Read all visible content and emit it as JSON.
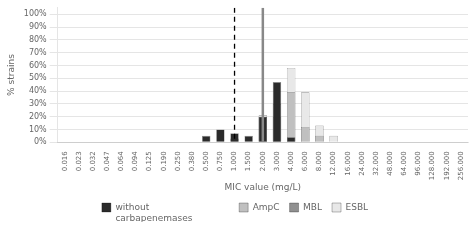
{
  "chart_data": {
    "type": "bar",
    "categories": [
      "0.016",
      "0.023",
      "0.032",
      "0.047",
      "0.064",
      "0.094",
      "0.125",
      "0.190",
      "0.250",
      "0.380",
      "0.500",
      "0.750",
      "1.000",
      "1.500",
      "2.000",
      "3.000",
      "4.000",
      "6.000",
      "8.000",
      "12.000",
      "16.000",
      "24.000",
      "32.000",
      "48.000",
      "64.000",
      "96.000",
      "128.000",
      "192.000",
      "256.000"
    ],
    "series": [
      {
        "name": "without\ncarbapenemases",
        "color": "#2b2b2b",
        "values": [
          0,
          0,
          0,
          0,
          0,
          0,
          0,
          0,
          0,
          0,
          5,
          10,
          7,
          5,
          20,
          47,
          4,
          0,
          0,
          0,
          0,
          0,
          0,
          0,
          0,
          0,
          0,
          0,
          0
        ]
      },
      {
        "name": "AmpC",
        "color": "#c0c0c0",
        "values": [
          0,
          0,
          0,
          0,
          0,
          0,
          0,
          0,
          0,
          0,
          0,
          0,
          3,
          0,
          20,
          20,
          39,
          12,
          5,
          0,
          0,
          0,
          0,
          0,
          0,
          0,
          0,
          0,
          0
        ]
      },
      {
        "name": "MBL",
        "color": "#909090",
        "values": [
          0,
          0,
          0,
          0,
          0,
          0,
          0,
          0,
          0,
          0,
          0,
          0,
          0,
          0,
          0,
          0,
          0,
          0,
          0,
          0,
          0,
          0,
          0,
          0,
          0,
          0,
          0,
          0,
          0
        ]
      },
      {
        "name": "ESBL",
        "color": "#e8e8e8",
        "values": [
          0,
          0,
          0,
          0,
          0,
          0,
          0,
          0,
          0,
          0,
          0,
          0,
          0,
          0,
          21,
          30,
          58,
          39,
          13,
          5,
          0,
          0,
          0,
          0,
          0,
          0,
          0,
          0,
          0
        ]
      }
    ],
    "xlabel": "MIC value (mg/L)",
    "ylabel": "% strains",
    "ylim": [
      0,
      105
    ],
    "yticks": [
      {
        "value": 0,
        "label": "0%"
      },
      {
        "value": 10,
        "label": "10%"
      },
      {
        "value": 20,
        "label": "20%"
      },
      {
        "value": 30,
        "label": "30%"
      },
      {
        "value": 40,
        "label": "40%"
      },
      {
        "value": 50,
        "label": "50%"
      },
      {
        "value": 60,
        "label": "60%"
      },
      {
        "value": 70,
        "label": "70%"
      },
      {
        "value": 80,
        "label": "80%"
      },
      {
        "value": 90,
        "label": "90%"
      },
      {
        "value": 100,
        "label": "100%"
      }
    ],
    "grid": true,
    "legend": "bottom",
    "reference_lines": [
      {
        "x": "1.000",
        "color": "#000000",
        "line_style": "dashed"
      },
      {
        "x": "2.000",
        "color": "#888888",
        "line_style": "solid"
      }
    ]
  }
}
